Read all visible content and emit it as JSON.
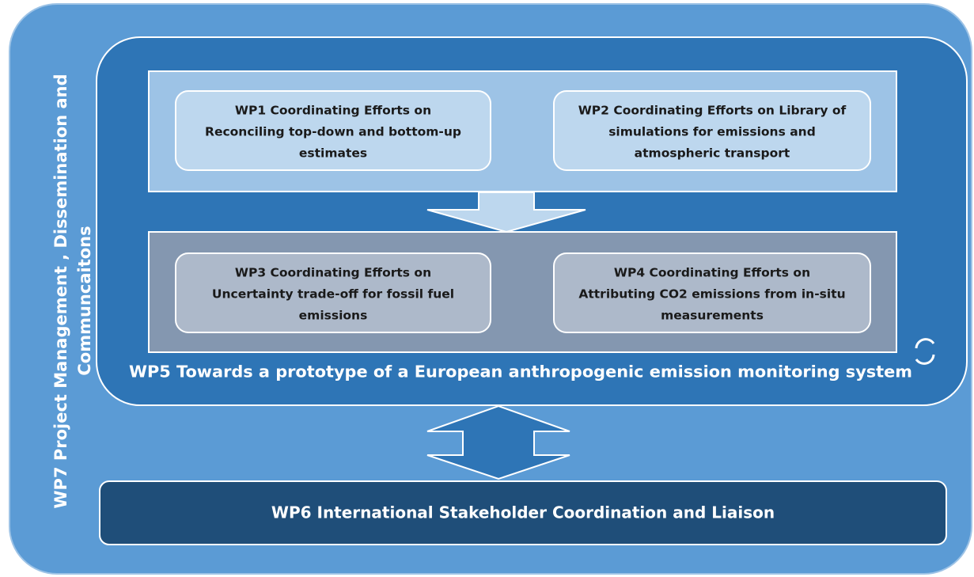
{
  "wp7": {
    "lines": [
      "WP7 Project Management , Dissemination and",
      "Communcaitons"
    ]
  },
  "boxes": [
    {
      "lines": [
        "WP1 Coordinating Efforts on",
        "Reconciling top-down and bottom-up",
        "estimates"
      ]
    },
    {
      "lines": [
        "WP2 Coordinating Efforts on Library of",
        "simulations for emissions and",
        "atmospheric transport"
      ]
    },
    {
      "lines": [
        "WP3 Coordinating Efforts on",
        "Uncertainty trade-off for fossil fuel",
        "emissions"
      ]
    },
    {
      "lines": [
        "WP4 Coordinating Efforts on",
        "Attributing CO2 emissions from in-situ",
        "measurements"
      ]
    }
  ],
  "wp5": "WP5 Towards a prototype of a European anthropogenic emission monitoring system",
  "wp6": "WP6 International Stakeholder Coordination and Liaison"
}
